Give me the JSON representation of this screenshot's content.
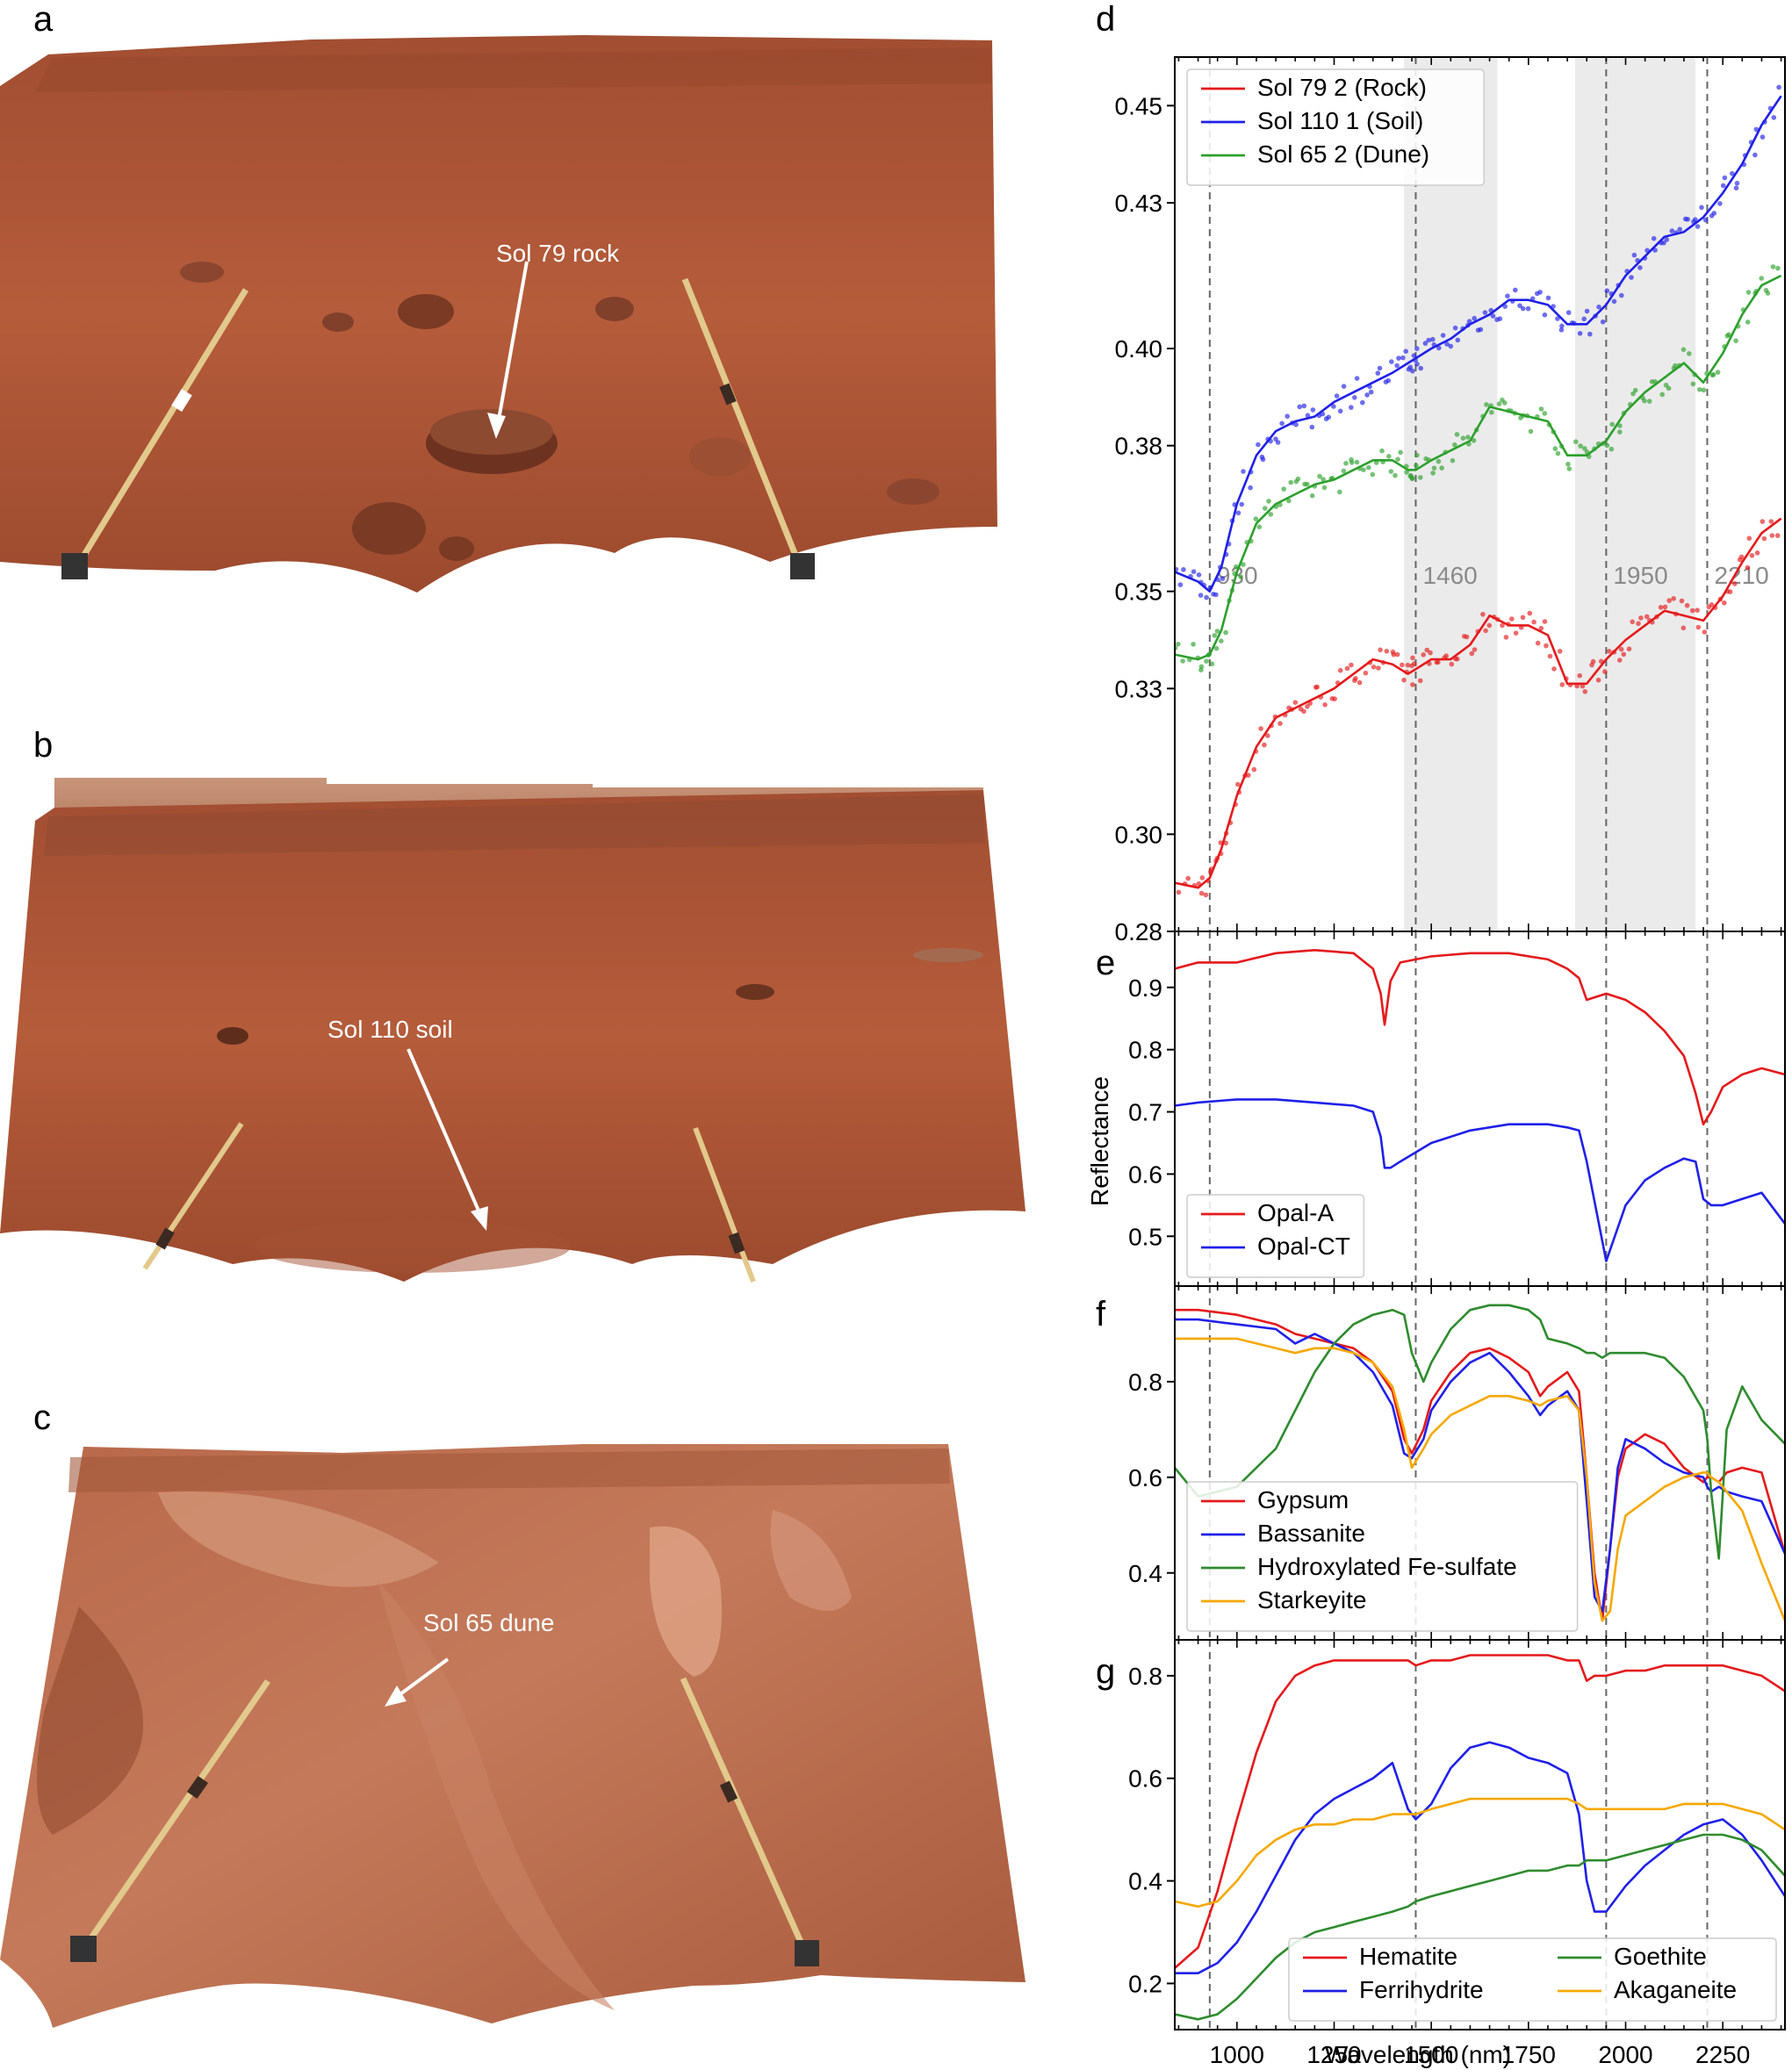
{
  "panel_labels": {
    "a": "a",
    "b": "b",
    "c": "c",
    "d": "d",
    "e": "e",
    "f": "f",
    "g": "g"
  },
  "photos": [
    {
      "annotation": "Sol 79 rock"
    },
    {
      "annotation": "Sol 110 soil"
    },
    {
      "annotation": "Sol 65 dune"
    }
  ],
  "colors": {
    "terrain": "#b25a3a",
    "terrain_dark": "#8a4228",
    "sky": "#c9957a",
    "mast": "#e4c98a"
  },
  "x_axis": {
    "label": "Wavelength (nm)",
    "ticks": [
      1000,
      1250,
      1500,
      1750,
      2000,
      2250
    ],
    "xlim": [
      840,
      2410
    ]
  },
  "y_axis_label": "Reflectance",
  "band_lines": [
    930,
    1460,
    1950,
    2210
  ],
  "band_labels": [
    "930",
    "1460",
    "1950",
    "2210"
  ],
  "chart_data": [
    {
      "type": "line",
      "panel": "d",
      "ylim": [
        0.28,
        0.46
      ],
      "ytick_values": [
        0.28,
        0.3,
        0.33,
        0.35,
        0.38,
        0.4,
        0.43,
        0.45
      ],
      "yticks": [
        "0.28",
        "0.30",
        "0.33",
        "0.35",
        "0.38",
        "0.40",
        "0.43",
        "0.45"
      ],
      "shaded_ranges": [
        [
          1430,
          1670
        ],
        [
          1870,
          2180
        ]
      ],
      "legend": "top-left",
      "scatter_points": true,
      "x": [
        840,
        900,
        930,
        960,
        1000,
        1050,
        1100,
        1150,
        1200,
        1250,
        1300,
        1350,
        1400,
        1440,
        1460,
        1500,
        1550,
        1600,
        1650,
        1700,
        1750,
        1800,
        1850,
        1900,
        1950,
        2000,
        2050,
        2100,
        2150,
        2200,
        2250,
        2300,
        2350,
        2400
      ],
      "series": [
        {
          "name": "Sol 79 2 (Rock)",
          "color": "#e41a1c",
          "values": [
            0.29,
            0.289,
            0.291,
            0.297,
            0.308,
            0.318,
            0.324,
            0.326,
            0.328,
            0.33,
            0.333,
            0.336,
            0.335,
            0.333,
            0.334,
            0.336,
            0.336,
            0.339,
            0.345,
            0.343,
            0.343,
            0.341,
            0.331,
            0.331,
            0.336,
            0.34,
            0.343,
            0.346,
            0.345,
            0.344,
            0.349,
            0.356,
            0.362,
            0.365
          ]
        },
        {
          "name": "Sol 110 1 (Soil)",
          "color": "#2020e8",
          "values": [
            0.354,
            0.352,
            0.35,
            0.355,
            0.368,
            0.378,
            0.383,
            0.385,
            0.386,
            0.389,
            0.391,
            0.393,
            0.395,
            0.397,
            0.398,
            0.4,
            0.402,
            0.405,
            0.407,
            0.41,
            0.41,
            0.409,
            0.405,
            0.405,
            0.409,
            0.415,
            0.419,
            0.423,
            0.424,
            0.427,
            0.432,
            0.438,
            0.446,
            0.452
          ]
        },
        {
          "name": "Sol 65 2 (Dune)",
          "color": "#2ca02c",
          "values": [
            0.337,
            0.336,
            0.337,
            0.342,
            0.354,
            0.364,
            0.368,
            0.37,
            0.372,
            0.373,
            0.375,
            0.377,
            0.377,
            0.375,
            0.375,
            0.377,
            0.379,
            0.381,
            0.388,
            0.387,
            0.386,
            0.385,
            0.378,
            0.378,
            0.381,
            0.387,
            0.391,
            0.394,
            0.397,
            0.393,
            0.399,
            0.407,
            0.413,
            0.415
          ]
        }
      ]
    },
    {
      "type": "line",
      "panel": "e",
      "ylim": [
        0.42,
        0.99
      ],
      "ytick_values": [
        0.5,
        0.6,
        0.7,
        0.8,
        0.9
      ],
      "yticks": [
        "0.5",
        "0.6",
        "0.7",
        "0.8",
        "0.9"
      ],
      "legend": "bottom-left",
      "x": [
        840,
        900,
        1000,
        1100,
        1200,
        1300,
        1350,
        1370,
        1380,
        1395,
        1420,
        1500,
        1600,
        1700,
        1800,
        1850,
        1880,
        1900,
        1950,
        2000,
        2050,
        2100,
        2150,
        2180,
        2200,
        2220,
        2250,
        2300,
        2350,
        2410
      ],
      "series": [
        {
          "name": "Opal-A",
          "color": "#e41a1c",
          "values": [
            0.93,
            0.94,
            0.94,
            0.955,
            0.96,
            0.955,
            0.93,
            0.89,
            0.84,
            0.91,
            0.94,
            0.95,
            0.955,
            0.955,
            0.945,
            0.93,
            0.915,
            0.88,
            0.89,
            0.88,
            0.86,
            0.83,
            0.79,
            0.73,
            0.68,
            0.7,
            0.74,
            0.76,
            0.77,
            0.76
          ]
        },
        {
          "name": "Opal-CT",
          "color": "#2020e8",
          "values": [
            0.71,
            0.715,
            0.72,
            0.72,
            0.715,
            0.71,
            0.7,
            0.66,
            0.61,
            0.61,
            0.62,
            0.65,
            0.67,
            0.68,
            0.68,
            0.675,
            0.67,
            0.62,
            0.46,
            0.55,
            0.59,
            0.61,
            0.625,
            0.62,
            0.56,
            0.55,
            0.55,
            0.56,
            0.57,
            0.52
          ]
        }
      ]
    },
    {
      "type": "line",
      "panel": "f",
      "ylim": [
        0.26,
        1.0
      ],
      "ytick_values": [
        0.4,
        0.6,
        0.8
      ],
      "yticks": [
        "0.4",
        "0.6",
        "0.8"
      ],
      "legend": "bottom-left",
      "x": [
        840,
        900,
        1000,
        1100,
        1150,
        1200,
        1250,
        1300,
        1350,
        1400,
        1430,
        1450,
        1480,
        1500,
        1550,
        1600,
        1650,
        1700,
        1750,
        1780,
        1800,
        1850,
        1880,
        1900,
        1920,
        1940,
        1960,
        1980,
        2000,
        2050,
        2100,
        2150,
        2200,
        2210,
        2220,
        2240,
        2260,
        2300,
        2350,
        2410
      ],
      "series": [
        {
          "name": "Gypsum",
          "color": "#e41a1c",
          "values": [
            0.95,
            0.95,
            0.94,
            0.92,
            0.9,
            0.89,
            0.88,
            0.87,
            0.84,
            0.78,
            0.68,
            0.65,
            0.7,
            0.76,
            0.82,
            0.86,
            0.87,
            0.85,
            0.82,
            0.77,
            0.79,
            0.82,
            0.78,
            0.6,
            0.4,
            0.3,
            0.45,
            0.6,
            0.66,
            0.69,
            0.67,
            0.62,
            0.59,
            0.6,
            0.6,
            0.59,
            0.61,
            0.62,
            0.61,
            0.44
          ]
        },
        {
          "name": "Bassanite",
          "color": "#2020e8",
          "values": [
            0.93,
            0.93,
            0.92,
            0.91,
            0.88,
            0.9,
            0.88,
            0.86,
            0.82,
            0.75,
            0.65,
            0.64,
            0.68,
            0.74,
            0.8,
            0.84,
            0.86,
            0.82,
            0.77,
            0.73,
            0.75,
            0.78,
            0.74,
            0.55,
            0.35,
            0.32,
            0.45,
            0.62,
            0.68,
            0.66,
            0.63,
            0.61,
            0.6,
            0.58,
            0.57,
            0.58,
            0.57,
            0.56,
            0.55,
            0.44
          ]
        },
        {
          "name": "Hydroxylated Fe-sulfate",
          "color": "#2e8b2e",
          "values": [
            0.62,
            0.56,
            0.58,
            0.66,
            0.74,
            0.82,
            0.88,
            0.92,
            0.94,
            0.95,
            0.94,
            0.86,
            0.8,
            0.84,
            0.91,
            0.95,
            0.96,
            0.96,
            0.95,
            0.93,
            0.89,
            0.88,
            0.87,
            0.86,
            0.86,
            0.85,
            0.86,
            0.86,
            0.86,
            0.86,
            0.85,
            0.81,
            0.74,
            0.68,
            0.57,
            0.43,
            0.7,
            0.79,
            0.72,
            0.67
          ]
        },
        {
          "name": "Starkeyite",
          "color": "#f5a800",
          "values": [
            0.89,
            0.89,
            0.89,
            0.87,
            0.86,
            0.87,
            0.87,
            0.86,
            0.84,
            0.79,
            0.7,
            0.62,
            0.66,
            0.69,
            0.73,
            0.75,
            0.77,
            0.77,
            0.76,
            0.75,
            0.76,
            0.77,
            0.74,
            0.6,
            0.38,
            0.3,
            0.32,
            0.45,
            0.52,
            0.55,
            0.58,
            0.6,
            0.61,
            0.61,
            0.6,
            0.59,
            0.57,
            0.53,
            0.42,
            0.3
          ]
        }
      ]
    },
    {
      "type": "line",
      "panel": "g",
      "ylim": [
        0.11,
        0.87
      ],
      "ytick_values": [
        0.2,
        0.4,
        0.6,
        0.8
      ],
      "yticks": [
        "0.2",
        "0.4",
        "0.6",
        "0.8"
      ],
      "legend": "bottom-right",
      "legend_columns": 2,
      "x": [
        840,
        900,
        950,
        1000,
        1050,
        1100,
        1150,
        1200,
        1250,
        1300,
        1350,
        1400,
        1440,
        1460,
        1500,
        1550,
        1600,
        1650,
        1700,
        1750,
        1800,
        1850,
        1880,
        1900,
        1920,
        1950,
        2000,
        2050,
        2100,
        2150,
        2200,
        2250,
        2300,
        2350,
        2410
      ],
      "series": [
        {
          "name": "Hematite",
          "color": "#e41a1c",
          "values": [
            0.23,
            0.27,
            0.38,
            0.52,
            0.65,
            0.75,
            0.8,
            0.82,
            0.83,
            0.83,
            0.83,
            0.83,
            0.83,
            0.82,
            0.83,
            0.83,
            0.84,
            0.84,
            0.84,
            0.84,
            0.84,
            0.83,
            0.83,
            0.79,
            0.8,
            0.8,
            0.81,
            0.81,
            0.82,
            0.82,
            0.82,
            0.82,
            0.81,
            0.8,
            0.77
          ]
        },
        {
          "name": "Ferrihydrite",
          "color": "#2020e8",
          "values": [
            0.22,
            0.22,
            0.24,
            0.28,
            0.34,
            0.41,
            0.48,
            0.53,
            0.56,
            0.58,
            0.6,
            0.63,
            0.54,
            0.52,
            0.55,
            0.62,
            0.66,
            0.67,
            0.66,
            0.64,
            0.63,
            0.61,
            0.53,
            0.4,
            0.34,
            0.34,
            0.39,
            0.43,
            0.46,
            0.49,
            0.51,
            0.52,
            0.49,
            0.44,
            0.37
          ]
        },
        {
          "name": "Goethite",
          "color": "#2e8b2e",
          "values": [
            0.14,
            0.13,
            0.14,
            0.17,
            0.21,
            0.25,
            0.28,
            0.3,
            0.31,
            0.32,
            0.33,
            0.34,
            0.35,
            0.36,
            0.37,
            0.38,
            0.39,
            0.4,
            0.41,
            0.42,
            0.42,
            0.43,
            0.43,
            0.44,
            0.44,
            0.44,
            0.45,
            0.46,
            0.47,
            0.48,
            0.49,
            0.49,
            0.48,
            0.46,
            0.41
          ]
        },
        {
          "name": "Akaganeite",
          "color": "#f5a800",
          "values": [
            0.36,
            0.35,
            0.36,
            0.4,
            0.45,
            0.48,
            0.5,
            0.51,
            0.51,
            0.52,
            0.52,
            0.53,
            0.53,
            0.53,
            0.54,
            0.55,
            0.56,
            0.56,
            0.56,
            0.56,
            0.56,
            0.56,
            0.55,
            0.54,
            0.54,
            0.54,
            0.54,
            0.54,
            0.54,
            0.55,
            0.55,
            0.55,
            0.54,
            0.53,
            0.5
          ]
        }
      ]
    }
  ]
}
